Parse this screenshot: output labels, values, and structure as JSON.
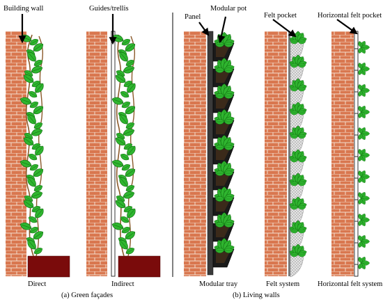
{
  "labels": {
    "building_wall": "Building wall",
    "guides_trellis": "Guides/trellis",
    "panel": "Panel",
    "modular_pot": "Modular pot",
    "felt_pocket": "Felt pocket",
    "horizontal_felt_pocket": "Horizontal felt pocket"
  },
  "captions": {
    "direct": "Direct",
    "indirect": "Indirect",
    "modular_tray": "Modular tray",
    "felt_system": "Felt system",
    "horizontal_felt_system": "Horizontal felt system",
    "green_facades": "(a) Green façades",
    "living_walls": "(b) Living walls"
  },
  "colors": {
    "brick": "#d9774f",
    "mortar": "#f3dccd",
    "leaf": "#2fb52f",
    "leaf_dark": "#0f6b0f",
    "planter": "#7a0b0b",
    "panel": "#3a3a3a",
    "felt": "#d8d8d8",
    "stem": "#8b5a2b"
  }
}
